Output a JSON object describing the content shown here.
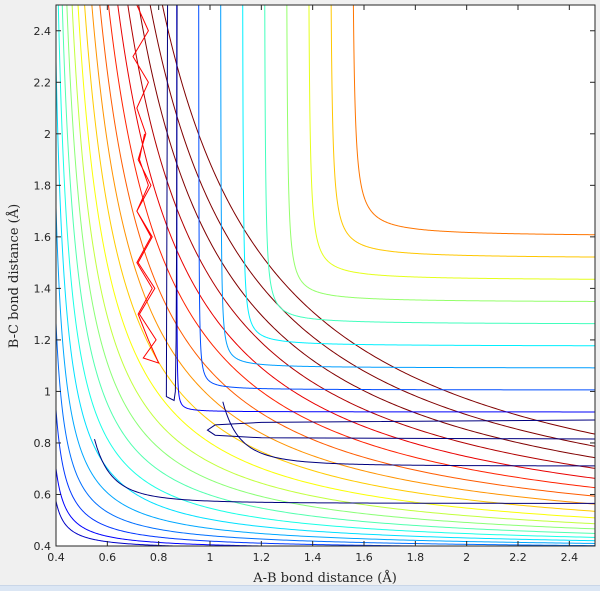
{
  "chart_data": {
    "type": "contour",
    "title": "",
    "xlabel": "A-B bond distance (Å)",
    "ylabel": "B-C bond distance (Å)",
    "xlim": [
      0.4,
      2.5
    ],
    "ylim": [
      0.4,
      2.5
    ],
    "xticks": [
      0.4,
      0.6,
      0.8,
      1,
      1.2,
      1.4,
      1.6,
      1.8,
      2,
      2.2,
      2.4
    ],
    "yticks": [
      0.4,
      0.6,
      0.8,
      1,
      1.2,
      1.4,
      1.6,
      1.8,
      2,
      2.2,
      2.4
    ],
    "xtick_labels": [
      "0.4",
      "0.6",
      "0.8",
      "1",
      "1.2",
      "1.4",
      "1.6",
      "1.8",
      "2",
      "2.2",
      "2.4"
    ],
    "ytick_labels": [
      "0.4",
      "0.6",
      "0.8",
      "1",
      "1.2",
      "1.4",
      "1.6",
      "1.8",
      "2",
      "2.2",
      "2.4"
    ],
    "colormap": "jet",
    "grid": false,
    "outer_contour_levels": [
      0.02,
      0.08,
      0.14,
      0.2,
      0.26,
      0.32,
      0.38,
      0.44,
      0.5,
      0.56,
      0.62,
      0.68,
      0.74,
      0.8,
      0.86,
      0.92,
      0.98,
      1.04,
      1.1,
      1.16
    ],
    "inner_contour_levels": [
      0.04,
      0.12,
      0.2,
      0.28,
      0.36,
      0.44,
      0.52,
      0.6,
      0.68
    ],
    "tail_contours": [
      {
        "name": "",
        "y": 0.565,
        "x_start": 0.55,
        "x_end": 2.5
      },
      {
        "name": "",
        "y": 0.71,
        "x_start": 1.05,
        "x_end": 2.5
      }
    ],
    "trajectory_color": "#ff0000",
    "trajectory": [
      [
        0.715,
        2.5
      ],
      [
        0.76,
        2.4
      ],
      [
        0.7,
        2.3
      ],
      [
        0.76,
        2.2
      ],
      [
        0.715,
        2.1
      ],
      [
        0.75,
        2.0
      ],
      [
        0.72,
        1.9
      ],
      [
        0.77,
        1.8
      ],
      [
        0.715,
        1.7
      ],
      [
        0.775,
        1.6
      ],
      [
        0.72,
        1.5
      ],
      [
        0.785,
        1.4
      ],
      [
        0.725,
        1.3
      ],
      [
        0.79,
        1.2
      ],
      [
        0.74,
        1.13
      ],
      [
        0.8,
        1.11
      ],
      [
        0.76,
        1.2
      ],
      [
        0.72,
        1.3
      ],
      [
        0.775,
        1.4
      ],
      [
        0.715,
        1.5
      ],
      [
        0.77,
        1.6
      ],
      [
        0.715,
        1.7
      ],
      [
        0.76,
        1.8
      ],
      [
        0.725,
        1.9
      ],
      [
        0.745,
        2.0
      ]
    ]
  }
}
